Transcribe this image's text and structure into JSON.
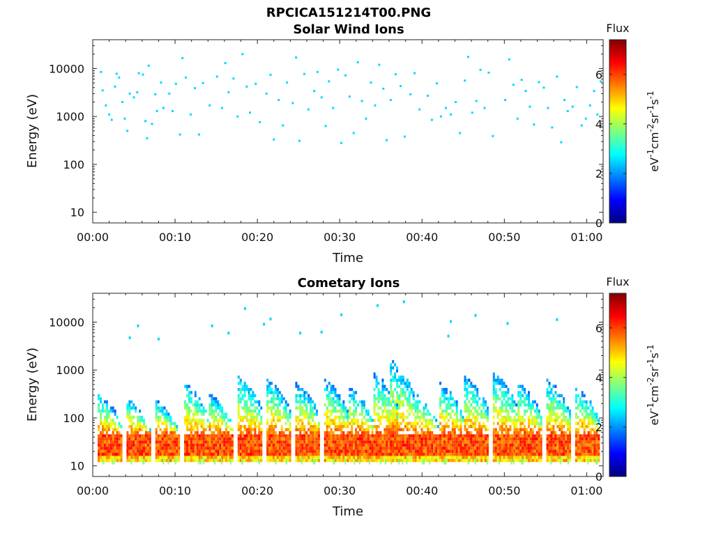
{
  "figure_title": "RPCICA151214T00.PNG",
  "colormap": [
    "#00007f",
    "#0000ff",
    "#007fff",
    "#00ffff",
    "#7fff7f",
    "#ffff00",
    "#ff7f00",
    "#ff0000",
    "#7f0000"
  ],
  "chart_data": [
    {
      "type": "heatmap",
      "title": "Solar Wind Ions",
      "xlabel": "Time",
      "ylabel": "Energy (eV)",
      "x_ticks": [
        "00:00",
        "00:10",
        "00:20",
        "00:30",
        "00:40",
        "00:50",
        "01:00"
      ],
      "xlim_minutes": [
        0,
        62
      ],
      "y_scale": "log",
      "y_ticks": [
        "10",
        "100",
        "1000",
        "10000"
      ],
      "ylim": [
        6,
        40000
      ],
      "colorbar": {
        "title": "Flux",
        "label": "eV-1cm-2sr-1s-1",
        "ticks": [
          "0",
          "2",
          "4",
          "6"
        ],
        "range": [
          0,
          7.4
        ]
      },
      "points": [
        [
          1,
          8500,
          2.5
        ],
        [
          1.2,
          3500,
          2.5
        ],
        [
          1.6,
          1700,
          2.5
        ],
        [
          2.0,
          1100,
          2.5
        ],
        [
          2.3,
          850,
          2.5
        ],
        [
          2.7,
          4200,
          2.5
        ],
        [
          2.9,
          7800,
          2.5
        ],
        [
          3.2,
          6500,
          2.5
        ],
        [
          3.6,
          2000,
          2.5
        ],
        [
          3.9,
          900,
          2.5
        ],
        [
          4.2,
          500,
          2.5
        ],
        [
          4.5,
          3000,
          2.5
        ],
        [
          5.0,
          2500,
          2.5
        ],
        [
          5.4,
          3200,
          2.5
        ],
        [
          5.6,
          8000,
          2.5
        ],
        [
          6.1,
          7500,
          2.5
        ],
        [
          6.4,
          800,
          2.5
        ],
        [
          6.6,
          350,
          2.5
        ],
        [
          6.8,
          11500,
          2.5
        ],
        [
          7.2,
          700,
          2.5
        ],
        [
          7.6,
          2900,
          2.5
        ],
        [
          7.8,
          1300,
          2.5
        ],
        [
          8.3,
          5100,
          2.5
        ],
        [
          8.6,
          1500,
          2.5
        ],
        [
          9.3,
          3000,
          2.5
        ],
        [
          9.7,
          1300,
          2.5
        ],
        [
          10.1,
          4800,
          2.5
        ],
        [
          10.6,
          420,
          2.5
        ],
        [
          10.9,
          16500,
          2.5
        ],
        [
          11.3,
          6500,
          2.5
        ],
        [
          11.9,
          1100,
          2.5
        ],
        [
          12.4,
          3900,
          2.5
        ],
        [
          12.9,
          420,
          2.5
        ],
        [
          13.4,
          5000,
          2.5
        ],
        [
          14.2,
          1700,
          2.5
        ],
        [
          15.1,
          6800,
          2.5
        ],
        [
          15.7,
          1500,
          2.5
        ],
        [
          16.1,
          13000,
          2.5
        ],
        [
          16.5,
          3200,
          2.5
        ],
        [
          17.1,
          6200,
          2.5
        ],
        [
          17.6,
          1000,
          2.5
        ],
        [
          18.2,
          20000,
          2.5
        ],
        [
          18.7,
          4200,
          2.5
        ],
        [
          19.1,
          1200,
          2.5
        ],
        [
          19.8,
          4800,
          2.5
        ],
        [
          20.3,
          760,
          2.5
        ],
        [
          21.1,
          3000,
          2.5
        ],
        [
          21.6,
          7400,
          2.5
        ],
        [
          22.0,
          330,
          2.5
        ],
        [
          22.6,
          2200,
          2.5
        ],
        [
          23.1,
          650,
          2.5
        ],
        [
          23.6,
          5100,
          2.5
        ],
        [
          24.3,
          1900,
          2.5
        ],
        [
          24.7,
          17000,
          2.5
        ],
        [
          25.1,
          310,
          2.5
        ],
        [
          25.7,
          7700,
          2.5
        ],
        [
          26.2,
          1400,
          2.5
        ],
        [
          26.9,
          3400,
          2.5
        ],
        [
          27.3,
          8500,
          2.5
        ],
        [
          27.8,
          2500,
          2.5
        ],
        [
          28.3,
          630,
          2.5
        ],
        [
          28.7,
          5400,
          2.5
        ],
        [
          29.2,
          1500,
          2.5
        ],
        [
          29.8,
          9500,
          2.5
        ],
        [
          30.2,
          280,
          2.5
        ],
        [
          30.7,
          7200,
          2.5
        ],
        [
          31.2,
          2600,
          2.5
        ],
        [
          31.7,
          450,
          2.5
        ],
        [
          32.2,
          13500,
          2.5
        ],
        [
          32.7,
          2100,
          2.5
        ],
        [
          33.2,
          900,
          2.5
        ],
        [
          33.8,
          5100,
          2.5
        ],
        [
          34.3,
          1700,
          2.5
        ],
        [
          34.8,
          12000,
          2.5
        ],
        [
          35.3,
          3800,
          2.5
        ],
        [
          35.7,
          320,
          2.5
        ],
        [
          36.2,
          2200,
          2.5
        ],
        [
          36.8,
          7600,
          2.5
        ],
        [
          37.4,
          4300,
          2.5
        ],
        [
          37.9,
          380,
          2.5
        ],
        [
          38.6,
          2900,
          2.5
        ],
        [
          39.1,
          8000,
          2.5
        ],
        [
          39.7,
          1400,
          2.5
        ],
        [
          40.7,
          2700,
          2.5
        ],
        [
          41.2,
          850,
          2.5
        ],
        [
          41.8,
          4900,
          2.5
        ],
        [
          42.3,
          1000,
          2.5
        ],
        [
          42.9,
          1500,
          2.5
        ],
        [
          43.5,
          1100,
          2.5
        ],
        [
          44.1,
          2000,
          2.5
        ],
        [
          44.6,
          450,
          2.5
        ],
        [
          45.2,
          5600,
          2.5
        ],
        [
          45.6,
          17500,
          2.5
        ],
        [
          46.1,
          1200,
          2.5
        ],
        [
          46.6,
          2100,
          2.5
        ],
        [
          47.1,
          9400,
          2.5
        ],
        [
          47.6,
          1500,
          2.5
        ],
        [
          48.1,
          8200,
          2.5
        ],
        [
          48.6,
          390,
          2.5
        ],
        [
          50.1,
          2200,
          2.5
        ],
        [
          50.6,
          15500,
          2.5
        ],
        [
          51.1,
          4600,
          2.5
        ],
        [
          51.6,
          900,
          2.5
        ],
        [
          52.1,
          5800,
          2.5
        ],
        [
          52.6,
          3400,
          2.5
        ],
        [
          53.1,
          1600,
          2.5
        ],
        [
          53.6,
          680,
          2.5
        ],
        [
          54.2,
          5200,
          2.5
        ],
        [
          54.8,
          4000,
          2.5
        ],
        [
          55.3,
          1500,
          2.5
        ],
        [
          55.8,
          590,
          2.5
        ],
        [
          56.4,
          6800,
          2.5
        ],
        [
          56.9,
          290,
          2.5
        ],
        [
          57.3,
          2200,
          2.5
        ],
        [
          57.7,
          1300,
          2.5
        ],
        [
          58.3,
          1600,
          2.5
        ],
        [
          58.8,
          4100,
          2.5
        ],
        [
          59.4,
          650,
          2.5
        ],
        [
          59.9,
          900,
          2.5
        ],
        [
          60.4,
          1700,
          2.5
        ],
        [
          60.9,
          3400,
          2.5
        ],
        [
          61.3,
          1100,
          2.5
        ],
        [
          61.7,
          5400,
          2.5
        ]
      ]
    },
    {
      "type": "heatmap",
      "title": "Cometary Ions",
      "xlabel": "Time",
      "ylabel": "Energy (eV)",
      "x_ticks": [
        "00:00",
        "00:10",
        "00:20",
        "00:30",
        "00:40",
        "00:50",
        "01:00"
      ],
      "xlim_minutes": [
        0,
        62
      ],
      "y_scale": "log",
      "y_ticks": [
        "10",
        "100",
        "1000",
        "10000"
      ],
      "ylim": [
        6,
        40000
      ],
      "colorbar": {
        "title": "Flux",
        "label": "eV-1cm-2sr-1s-1",
        "ticks": [
          "0",
          "2",
          "4",
          "6"
        ],
        "range": [
          0,
          7.4
        ]
      },
      "band_energy_range_eV": [
        15,
        45
      ],
      "band_intensity": 6.5,
      "bursts": [
        {
          "t": 2,
          "peak_eV": 300
        },
        {
          "t": 5.5,
          "peak_eV": 250
        },
        {
          "t": 9,
          "peak_eV": 220
        },
        {
          "t": 12.5,
          "peak_eV": 500
        },
        {
          "t": 15.5,
          "peak_eV": 300
        },
        {
          "t": 19,
          "peak_eV": 700
        },
        {
          "t": 22.5,
          "peak_eV": 600
        },
        {
          "t": 26,
          "peak_eV": 500
        },
        {
          "t": 29.5,
          "peak_eV": 600
        },
        {
          "t": 32.5,
          "peak_eV": 400
        },
        {
          "t": 35.5,
          "peak_eV": 800
        },
        {
          "t": 37.5,
          "peak_eV": 1500
        },
        {
          "t": 40.5,
          "peak_eV": 300
        },
        {
          "t": 43.5,
          "peak_eV": 500
        },
        {
          "t": 46.5,
          "peak_eV": 700
        },
        {
          "t": 50,
          "peak_eV": 800
        },
        {
          "t": 53,
          "peak_eV": 500
        },
        {
          "t": 56.5,
          "peak_eV": 600
        },
        {
          "t": 60,
          "peak_eV": 400
        }
      ],
      "sparse_points": [
        [
          4.5,
          4800,
          2.5
        ],
        [
          5.5,
          8500,
          2.5
        ],
        [
          8,
          4500,
          2.5
        ],
        [
          14.5,
          8500,
          2.5
        ],
        [
          18.5,
          19500,
          2.5
        ],
        [
          20.8,
          9200,
          2.5
        ],
        [
          21.6,
          11800,
          2.5
        ],
        [
          27.8,
          6300,
          2.5
        ],
        [
          30.2,
          14500,
          2.5
        ],
        [
          34.6,
          22500,
          2.5
        ],
        [
          37.8,
          27000,
          2.5
        ],
        [
          43.5,
          10500,
          2.5
        ],
        [
          46.5,
          14000,
          2.5
        ],
        [
          50.4,
          9500,
          2.5
        ],
        [
          56.4,
          11500,
          2.5
        ],
        [
          16.5,
          6000,
          2.5
        ],
        [
          25.2,
          6000,
          2.5
        ],
        [
          43.2,
          5200,
          2.5
        ]
      ]
    }
  ]
}
